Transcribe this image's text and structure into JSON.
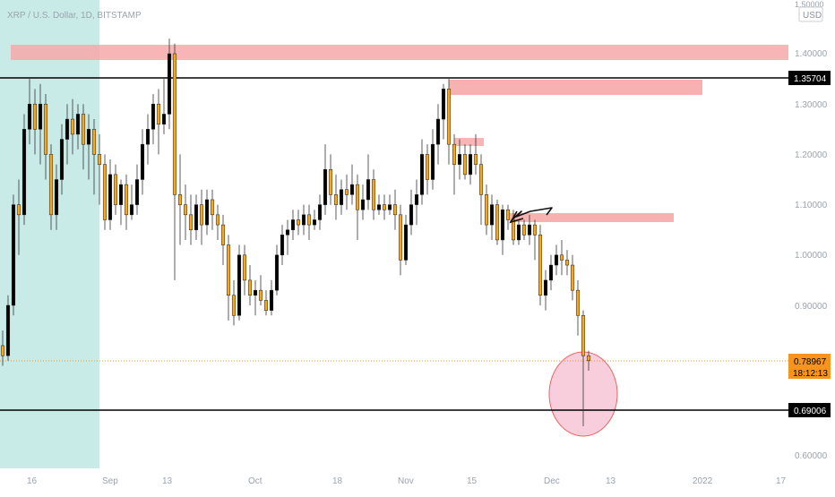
{
  "header": {
    "symbol_title": "XRP / U.S. Dollar, 1D, BITSTAMP"
  },
  "currency_badge": "USD",
  "price_axis": {
    "top_label": "1.50000",
    "ticks": [
      "1.40000",
      "1.30000",
      "1.20000",
      "1.10000",
      "1.00000",
      "0.90000",
      "0.60000"
    ]
  },
  "price_tags": {
    "level_high": "1.35704",
    "level_low": "0.69006",
    "last_price": "0.78967",
    "countdown": "18:12:13"
  },
  "time_axis": {
    "labels": [
      "16",
      "Sep",
      "13",
      "Oct",
      "18",
      "Nov",
      "15",
      "Dec",
      "13",
      "2022",
      "17"
    ]
  },
  "colors": {
    "up_candle": "#000000",
    "down_candle": "#f5a623",
    "highlight_band": "#c8ebe8",
    "supply_zone": "#f7a8a8",
    "target_circle": "#f7c6d6",
    "last_price_tag": "#f7941d"
  },
  "chart_data": {
    "type": "candlestick",
    "title": "XRP / U.S. Dollar, 1D, BITSTAMP",
    "ylim": [
      0.6,
      1.5
    ],
    "horizontal_levels": [
      1.35704,
      0.69006
    ],
    "last_price": 0.78967,
    "candles": [
      [
        0.82,
        0.8,
        0.85,
        0.78
      ],
      [
        0.8,
        0.9,
        0.92,
        0.79
      ],
      [
        0.9,
        1.1,
        1.12,
        0.88
      ],
      [
        1.1,
        1.08,
        1.15,
        1.0
      ],
      [
        1.08,
        1.25,
        1.28,
        1.06
      ],
      [
        1.25,
        1.3,
        1.35,
        1.22
      ],
      [
        1.3,
        1.25,
        1.33,
        1.2
      ],
      [
        1.25,
        1.3,
        1.34,
        1.18
      ],
      [
        1.3,
        1.2,
        1.32,
        1.15
      ],
      [
        1.2,
        1.08,
        1.22,
        1.05
      ],
      [
        1.08,
        1.15,
        1.18,
        1.05
      ],
      [
        1.15,
        1.23,
        1.26,
        1.12
      ],
      [
        1.23,
        1.27,
        1.3,
        1.18
      ],
      [
        1.27,
        1.24,
        1.31,
        1.2
      ],
      [
        1.24,
        1.28,
        1.3,
        1.21
      ],
      [
        1.28,
        1.22,
        1.3,
        1.17
      ],
      [
        1.22,
        1.25,
        1.28,
        1.15
      ],
      [
        1.25,
        1.2,
        1.27,
        1.12
      ],
      [
        1.2,
        1.18,
        1.24,
        1.1
      ],
      [
        1.18,
        1.07,
        1.2,
        1.05
      ],
      [
        1.07,
        1.16,
        1.19,
        1.05
      ],
      [
        1.16,
        1.1,
        1.18,
        1.08
      ],
      [
        1.1,
        1.14,
        1.15,
        1.06
      ],
      [
        1.14,
        1.08,
        1.16,
        1.05
      ],
      [
        1.08,
        1.1,
        1.14,
        1.07
      ],
      [
        1.1,
        1.15,
        1.18,
        1.08
      ],
      [
        1.15,
        1.22,
        1.25,
        1.12
      ],
      [
        1.22,
        1.25,
        1.28,
        1.18
      ],
      [
        1.25,
        1.3,
        1.32,
        1.22
      ],
      [
        1.3,
        1.26,
        1.33,
        1.2
      ],
      [
        1.26,
        1.28,
        1.35,
        1.24
      ],
      [
        1.28,
        1.4,
        1.43,
        1.25
      ],
      [
        1.4,
        1.12,
        1.42,
        0.95
      ],
      [
        1.12,
        1.1,
        1.2,
        1.02
      ],
      [
        1.1,
        1.08,
        1.14,
        1.03
      ],
      [
        1.08,
        1.05,
        1.12,
        1.02
      ],
      [
        1.05,
        1.1,
        1.12,
        1.03
      ],
      [
        1.1,
        1.06,
        1.13,
        1.02
      ],
      [
        1.06,
        1.11,
        1.13,
        1.04
      ],
      [
        1.11,
        1.08,
        1.13,
        1.05
      ],
      [
        1.08,
        1.06,
        1.1,
        1.03
      ],
      [
        1.06,
        1.02,
        1.08,
        0.98
      ],
      [
        1.02,
        0.92,
        1.04,
        0.87
      ],
      [
        0.92,
        0.88,
        0.95,
        0.86
      ],
      [
        0.88,
        1.0,
        1.02,
        0.87
      ],
      [
        1.0,
        0.95,
        1.02,
        0.92
      ],
      [
        0.95,
        0.92,
        0.98,
        0.9
      ],
      [
        0.92,
        0.93,
        0.95,
        0.88
      ],
      [
        0.93,
        0.91,
        0.96,
        0.9
      ],
      [
        0.91,
        0.89,
        0.93,
        0.88
      ],
      [
        0.89,
        0.93,
        0.95,
        0.88
      ],
      [
        0.93,
        1.0,
        1.02,
        0.92
      ],
      [
        1.0,
        1.04,
        1.06,
        0.98
      ],
      [
        1.04,
        1.05,
        1.07,
        1.0
      ],
      [
        1.05,
        1.07,
        1.09,
        1.03
      ],
      [
        1.07,
        1.06,
        1.09,
        1.04
      ],
      [
        1.06,
        1.08,
        1.1,
        1.04
      ],
      [
        1.08,
        1.06,
        1.1,
        1.03
      ],
      [
        1.06,
        1.07,
        1.09,
        1.05
      ],
      [
        1.07,
        1.1,
        1.12,
        1.05
      ],
      [
        1.1,
        1.17,
        1.22,
        1.08
      ],
      [
        1.17,
        1.12,
        1.2,
        1.1
      ],
      [
        1.12,
        1.1,
        1.16,
        1.07
      ],
      [
        1.1,
        1.13,
        1.15,
        1.08
      ],
      [
        1.13,
        1.12,
        1.16,
        1.09
      ],
      [
        1.12,
        1.14,
        1.18,
        1.1
      ],
      [
        1.14,
        1.09,
        1.16,
        1.03
      ],
      [
        1.09,
        1.11,
        1.14,
        1.07
      ],
      [
        1.11,
        1.15,
        1.2,
        1.09
      ],
      [
        1.15,
        1.09,
        1.17,
        1.07
      ],
      [
        1.09,
        1.1,
        1.12,
        1.08
      ],
      [
        1.1,
        1.09,
        1.12,
        1.07
      ],
      [
        1.09,
        1.1,
        1.12,
        1.08
      ],
      [
        1.1,
        1.08,
        1.13,
        1.05
      ],
      [
        1.08,
        0.99,
        1.1,
        0.96
      ],
      [
        0.99,
        1.06,
        1.08,
        0.98
      ],
      [
        1.06,
        1.1,
        1.13,
        1.04
      ],
      [
        1.1,
        1.12,
        1.15,
        1.06
      ],
      [
        1.12,
        1.2,
        1.23,
        1.1
      ],
      [
        1.2,
        1.15,
        1.22,
        1.12
      ],
      [
        1.15,
        1.22,
        1.25,
        1.13
      ],
      [
        1.22,
        1.27,
        1.3,
        1.18
      ],
      [
        1.27,
        1.33,
        1.34,
        1.23
      ],
      [
        1.33,
        1.22,
        1.35,
        1.18
      ],
      [
        1.22,
        1.18,
        1.24,
        1.12
      ],
      [
        1.18,
        1.2,
        1.23,
        1.15
      ],
      [
        1.2,
        1.16,
        1.22,
        1.15
      ],
      [
        1.16,
        1.2,
        1.22,
        1.14
      ],
      [
        1.2,
        1.18,
        1.24,
        1.16
      ],
      [
        1.18,
        1.12,
        1.2,
        1.06
      ],
      [
        1.12,
        1.06,
        1.14,
        1.04
      ],
      [
        1.06,
        1.1,
        1.12,
        1.03
      ],
      [
        1.1,
        1.03,
        1.11,
        1.02
      ],
      [
        1.03,
        1.09,
        1.1,
        1.0
      ],
      [
        1.09,
        1.07,
        1.1,
        1.05
      ],
      [
        1.07,
        1.03,
        1.09,
        1.02
      ],
      [
        1.03,
        1.06,
        1.07,
        1.02
      ],
      [
        1.06,
        1.04,
        1.07,
        1.03
      ],
      [
        1.04,
        1.06,
        1.08,
        1.02
      ],
      [
        1.06,
        1.04,
        1.07,
        0.99
      ],
      [
        1.04,
        0.92,
        1.06,
        0.9
      ],
      [
        0.92,
        0.95,
        0.97,
        0.89
      ],
      [
        0.95,
        0.98,
        1.0,
        0.93
      ],
      [
        0.98,
        1.0,
        1.02,
        0.96
      ],
      [
        1.0,
        0.99,
        1.03,
        0.96
      ],
      [
        0.99,
        0.98,
        1.01,
        0.96
      ],
      [
        0.98,
        0.93,
        1.0,
        0.91
      ],
      [
        0.93,
        0.88,
        0.95,
        0.84
      ],
      [
        0.88,
        0.8,
        0.89,
        0.66
      ],
      [
        0.8,
        0.79,
        0.81,
        0.77
      ]
    ]
  }
}
